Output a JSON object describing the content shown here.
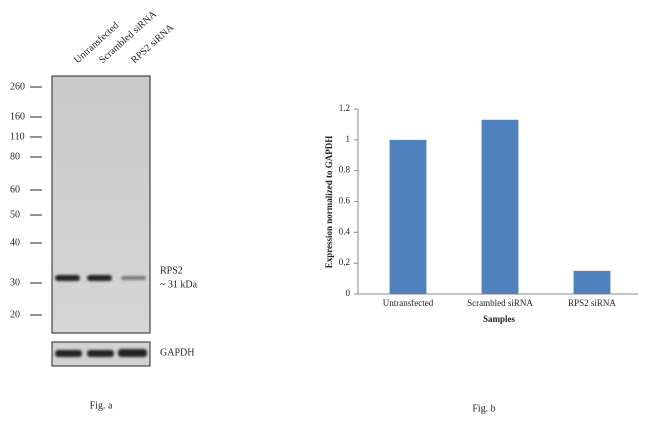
{
  "blot": {
    "lanes": [
      "Untransfected",
      "Scrambled siRNA",
      "RPS2 siRNA"
    ],
    "markers": [
      "260",
      "160",
      "110",
      "80",
      "60",
      "50",
      "40",
      "30",
      "20"
    ],
    "band_label": "RPS2",
    "band_size": "~ 31 kDa",
    "loading_label": "GAPDH",
    "caption": "Fig. a"
  },
  "chart_data": {
    "type": "bar",
    "categories": [
      "Untransfected",
      "Scrambled siRNA",
      "RPS2 siRNA"
    ],
    "values": [
      1.0,
      1.13,
      0.15
    ],
    "color": "#4f81bd",
    "ylim": [
      0,
      1.2
    ],
    "yticks": [
      0,
      0.2,
      0.4,
      0.6,
      0.8,
      1,
      1.2
    ],
    "ylabel": "Expression  normalized to GAPDH",
    "xlabel": "Samples",
    "caption": "Fig. b"
  }
}
